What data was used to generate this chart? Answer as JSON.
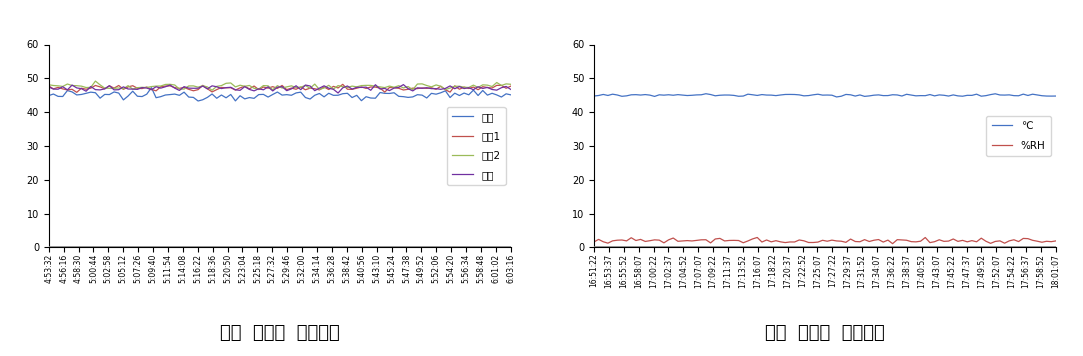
{
  "chart1": {
    "title": "고내  위치별  온도변화",
    "n_points": 100,
    "series": [
      {
        "label": "입구",
        "color": "#4472C4",
        "base": 45.0,
        "noise": 0.7
      },
      {
        "label": "중간1",
        "color": "#C0504D",
        "base": 47.2,
        "noise": 0.5
      },
      {
        "label": "중간2",
        "color": "#9BBB59",
        "base": 47.6,
        "noise": 0.5
      },
      {
        "label": "출구",
        "color": "#7030A0",
        "base": 47.1,
        "noise": 0.5
      }
    ],
    "ylim": [
      0,
      60
    ],
    "yticks": [
      0,
      10,
      20,
      30,
      40,
      50,
      60
    ],
    "xtick_labels": [
      "4:53:32",
      "4:56:16",
      "4:58:30",
      "5:00:44",
      "5:02:58",
      "5:05:12",
      "5:07:26",
      "5:09:40",
      "5:11:54",
      "5:14:08",
      "5:16:22",
      "5:18:36",
      "5:20:50",
      "5:23:04",
      "5:25:18",
      "5:27:32",
      "5:29:46",
      "5:32:00",
      "5:34:14",
      "5:36:28",
      "5:38:42",
      "5:40:56",
      "5:43:10",
      "5:45:24",
      "5:47:38",
      "5:49:52",
      "5:52:06",
      "5:54:20",
      "5:56:34",
      "5:58:48",
      "6:01:02",
      "6:03:16"
    ]
  },
  "chart2": {
    "title": "고내  중심부  온도변화",
    "n_points": 100,
    "series": [
      {
        "label": "℃",
        "color": "#4472C4",
        "base": 45.0,
        "noise": 0.2
      },
      {
        "label": "%RH",
        "color": "#C0504D",
        "base": 2.0,
        "noise": 0.4
      }
    ],
    "ylim": [
      0,
      60
    ],
    "yticks": [
      0,
      10,
      20,
      30,
      40,
      50,
      60
    ],
    "xtick_labels": [
      "16:51:22",
      "16:53:37",
      "16:55:52",
      "16:58:07",
      "17:00:22",
      "17:02:37",
      "17:04:52",
      "17:07:07",
      "17:09:22",
      "17:11:37",
      "17:13:52",
      "17:16:07",
      "17:18:22",
      "17:20:37",
      "17:22:52",
      "17:25:07",
      "17:27:22",
      "17:29:37",
      "17:31:52",
      "17:34:07",
      "17:36:22",
      "17:38:37",
      "17:40:52",
      "17:43:07",
      "17:45:22",
      "17:47:37",
      "17:49:52",
      "17:52:07",
      "17:54:22",
      "17:56:37",
      "17:58:52",
      "18:01:07"
    ]
  },
  "background_color": "#FFFFFF",
  "title_fontsize": 13,
  "tick_fontsize": 5.5,
  "legend_fontsize": 7.5,
  "ytick_fontsize": 7
}
